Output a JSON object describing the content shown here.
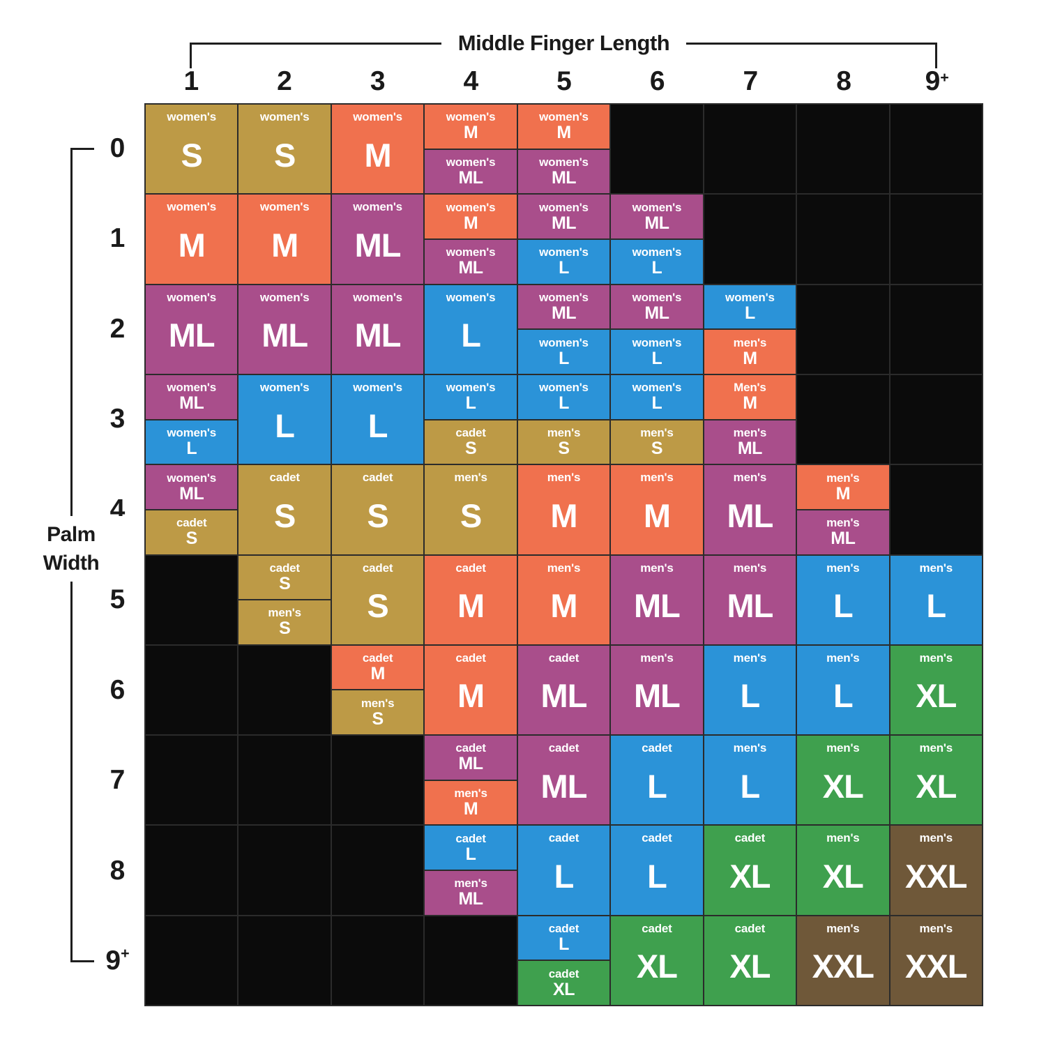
{
  "chart_data": {
    "type": "heatmap",
    "title": "Middle Finger Length",
    "x_axis": {
      "label": "Middle Finger Length",
      "categories": [
        "1",
        "2",
        "3",
        "4",
        "5",
        "6",
        "7",
        "8",
        "9+"
      ]
    },
    "y_axis": {
      "label": "Palm Width",
      "label_lines": [
        "Palm",
        "Width"
      ],
      "categories": [
        "0",
        "1",
        "2",
        "3",
        "4",
        "5",
        "6",
        "7",
        "8",
        "9+"
      ]
    },
    "size_colors": {
      "S": "#bd9a46",
      "M": "#f0714e",
      "ML": "#a94e8b",
      "L": "#2b93d8",
      "XL": "#3fa04e",
      "XXL": "#6f5839"
    },
    "empty_color": "#0b0b0b",
    "grid_line_color": "#2b2b2b",
    "text_color": "#ffffff",
    "axis_text_color": "#1a1a1a",
    "cells": [
      [
        [
          {
            "category": "women's",
            "size": "S"
          }
        ],
        [
          {
            "category": "women's",
            "size": "S"
          }
        ],
        [
          {
            "category": "women's",
            "size": "M"
          }
        ],
        [
          {
            "category": "women's",
            "size": "M"
          },
          {
            "category": "women's",
            "size": "ML"
          }
        ],
        [
          {
            "category": "women's",
            "size": "M"
          },
          {
            "category": "women's",
            "size": "ML"
          }
        ],
        null,
        null,
        null,
        null
      ],
      [
        [
          {
            "category": "women's",
            "size": "M"
          }
        ],
        [
          {
            "category": "women's",
            "size": "M"
          }
        ],
        [
          {
            "category": "women's",
            "size": "ML"
          }
        ],
        [
          {
            "category": "women's",
            "size": "M"
          },
          {
            "category": "women's",
            "size": "ML"
          }
        ],
        [
          {
            "category": "women's",
            "size": "ML"
          },
          {
            "category": "women's",
            "size": "L"
          }
        ],
        [
          {
            "category": "women's",
            "size": "ML"
          },
          {
            "category": "women's",
            "size": "L"
          }
        ],
        null,
        null,
        null
      ],
      [
        [
          {
            "category": "women's",
            "size": "ML"
          }
        ],
        [
          {
            "category": "women's",
            "size": "ML"
          }
        ],
        [
          {
            "category": "women's",
            "size": "ML"
          }
        ],
        [
          {
            "category": "women's",
            "size": "L"
          }
        ],
        [
          {
            "category": "women's",
            "size": "ML"
          },
          {
            "category": "women's",
            "size": "L"
          }
        ],
        [
          {
            "category": "women's",
            "size": "ML"
          },
          {
            "category": "women's",
            "size": "L"
          }
        ],
        [
          {
            "category": "women's",
            "size": "L"
          },
          {
            "category": "men's",
            "size": "M"
          }
        ],
        null,
        null
      ],
      [
        [
          {
            "category": "women's",
            "size": "ML"
          },
          {
            "category": "women's",
            "size": "L"
          }
        ],
        [
          {
            "category": "women's",
            "size": "L"
          }
        ],
        [
          {
            "category": "women's",
            "size": "L"
          }
        ],
        [
          {
            "category": "women's",
            "size": "L"
          },
          {
            "category": "cadet",
            "size": "S"
          }
        ],
        [
          {
            "category": "women's",
            "size": "L"
          },
          {
            "category": "men's",
            "size": "S"
          }
        ],
        [
          {
            "category": "women's",
            "size": "L"
          },
          {
            "category": "men's",
            "size": "S"
          }
        ],
        [
          {
            "category": "Men's",
            "size": "M"
          },
          {
            "category": "men's",
            "size": "ML"
          }
        ],
        null,
        null
      ],
      [
        [
          {
            "category": "women's",
            "size": "ML"
          },
          {
            "category": "cadet",
            "size": "S"
          }
        ],
        [
          {
            "category": "cadet",
            "size": "S"
          }
        ],
        [
          {
            "category": "cadet",
            "size": "S"
          }
        ],
        [
          {
            "category": "men's",
            "size": "S"
          }
        ],
        [
          {
            "category": "men's",
            "size": "M"
          }
        ],
        [
          {
            "category": "men's",
            "size": "M"
          }
        ],
        [
          {
            "category": "men's",
            "size": "ML"
          }
        ],
        [
          {
            "category": "men's",
            "size": "M"
          },
          {
            "category": "men's",
            "size": "ML"
          }
        ],
        null
      ],
      [
        null,
        [
          {
            "category": "cadet",
            "size": "S"
          },
          {
            "category": "men's",
            "size": "S"
          }
        ],
        [
          {
            "category": "cadet",
            "size": "S"
          }
        ],
        [
          {
            "category": "cadet",
            "size": "M"
          }
        ],
        [
          {
            "category": "men's",
            "size": "M"
          }
        ],
        [
          {
            "category": "men's",
            "size": "ML"
          }
        ],
        [
          {
            "category": "men's",
            "size": "ML"
          }
        ],
        [
          {
            "category": "men's",
            "size": "L"
          }
        ],
        [
          {
            "category": "men's",
            "size": "L"
          }
        ]
      ],
      [
        null,
        null,
        [
          {
            "category": "cadet",
            "size": "M"
          },
          {
            "category": "men's",
            "size": "S"
          }
        ],
        [
          {
            "category": "cadet",
            "size": "M"
          }
        ],
        [
          {
            "category": "cadet",
            "size": "ML"
          }
        ],
        [
          {
            "category": "men's",
            "size": "ML"
          }
        ],
        [
          {
            "category": "men's",
            "size": "L"
          }
        ],
        [
          {
            "category": "men's",
            "size": "L"
          }
        ],
        [
          {
            "category": "men's",
            "size": "XL"
          }
        ]
      ],
      [
        null,
        null,
        null,
        [
          {
            "category": "cadet",
            "size": "ML"
          },
          {
            "category": "men's",
            "size": "M"
          }
        ],
        [
          {
            "category": "cadet",
            "size": "ML"
          }
        ],
        [
          {
            "category": "cadet",
            "size": "L"
          }
        ],
        [
          {
            "category": "men's",
            "size": "L"
          }
        ],
        [
          {
            "category": "men's",
            "size": "XL"
          }
        ],
        [
          {
            "category": "men's",
            "size": "XL"
          }
        ]
      ],
      [
        null,
        null,
        null,
        [
          {
            "category": "cadet",
            "size": "L"
          },
          {
            "category": "men's",
            "size": "ML"
          }
        ],
        [
          {
            "category": "cadet",
            "size": "L"
          }
        ],
        [
          {
            "category": "cadet",
            "size": "L"
          }
        ],
        [
          {
            "category": "cadet",
            "size": "XL"
          }
        ],
        [
          {
            "category": "men's",
            "size": "XL"
          }
        ],
        [
          {
            "category": "men's",
            "size": "XXL"
          }
        ]
      ],
      [
        null,
        null,
        null,
        null,
        [
          {
            "category": "cadet",
            "size": "L"
          },
          {
            "category": "cadet",
            "size": "XL"
          }
        ],
        [
          {
            "category": "cadet",
            "size": "XL"
          }
        ],
        [
          {
            "category": "cadet",
            "size": "XL"
          }
        ],
        [
          {
            "category": "men's",
            "size": "XXL"
          }
        ],
        [
          {
            "category": "men's",
            "size": "XXL"
          }
        ]
      ]
    ]
  }
}
